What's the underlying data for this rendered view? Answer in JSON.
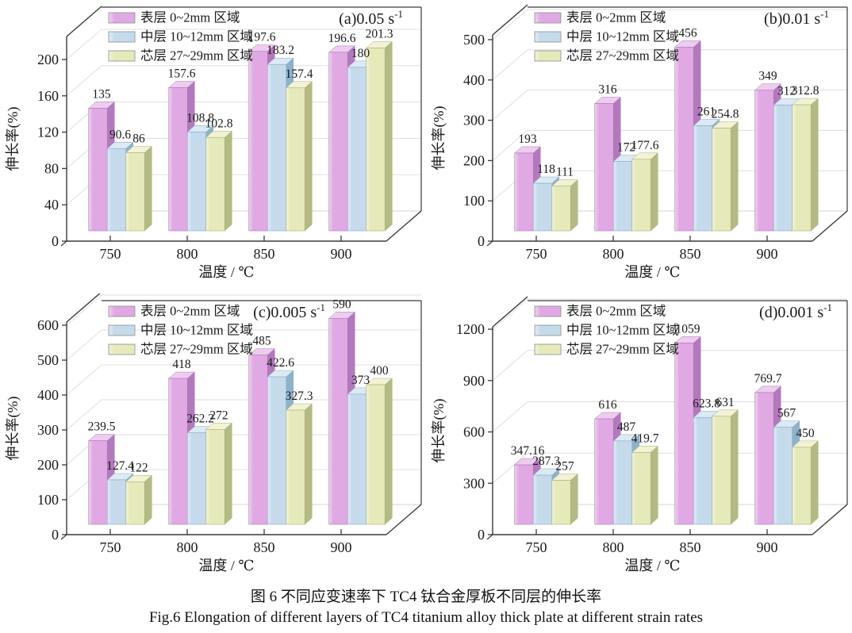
{
  "figure": {
    "caption_line1": "图 6  不同应变速率下 TC4 钛合金厚板不同层的伸长率",
    "caption_line2": "Fig.6  Elongation of different layers of TC4 titanium alloy thick plate at different strain rates"
  },
  "colors": {
    "axis": "#3a3a3a",
    "grid": "#dfdfdf",
    "text": "#1a1a1a",
    "series": [
      {
        "name": "表层 0~2mm 区域",
        "front": "#e0a9e3",
        "side": "#b27abc",
        "top": "#eeccf0",
        "edge": "#a878b0",
        "highlight": "#f0d4f2"
      },
      {
        "name": "中层 10~12mm 区域",
        "front": "#c5dbec",
        "side": "#8fb2ca",
        "top": "#dceaf5",
        "edge": "#85a9c2",
        "highlight": "#e2eef7"
      },
      {
        "name": "芯层 27~29mm 区域",
        "front": "#e6e9ba",
        "side": "#b4ba83",
        "top": "#f1f3d4",
        "edge": "#a9ae77",
        "highlight": "#f2f4d8"
      }
    ]
  },
  "chart_data": [
    {
      "type": "bar",
      "panel": "a",
      "title_main": "(a)0.05 s",
      "title_sup": "-1",
      "strain_rate": "0.05 s⁻¹",
      "xlabel": "温度 / ℃",
      "ylabel": "伸长率(%)",
      "categories": [
        750,
        800,
        850,
        900
      ],
      "yticks": [
        0,
        40,
        80,
        120,
        160,
        200
      ],
      "ylim": [
        0,
        225
      ],
      "legend_position": "top-left",
      "series": [
        {
          "name": "表层 0~2mm 区域",
          "values": [
            135,
            157.6,
            197.6,
            196.6
          ]
        },
        {
          "name": "中层 10~12mm 区域",
          "values": [
            90.6,
            108.8,
            183.2,
            180
          ]
        },
        {
          "name": "芯层 27~29mm 区域",
          "values": [
            86,
            102.8,
            157.4,
            201.3
          ]
        }
      ]
    },
    {
      "type": "bar",
      "panel": "b",
      "title_main": "(b)0.01 s",
      "title_sup": "-1",
      "strain_rate": "0.01 s⁻¹",
      "xlabel": "温度 / ℃",
      "ylabel": "伸长率(%)",
      "categories": [
        750,
        800,
        850,
        900
      ],
      "yticks": [
        0,
        100,
        200,
        300,
        400,
        500
      ],
      "ylim": [
        0,
        560
      ],
      "legend_position": "top-left",
      "series": [
        {
          "name": "表层 0~2mm 区域",
          "values": [
            193,
            316,
            456,
            349
          ]
        },
        {
          "name": "中层 10~12mm 区域",
          "values": [
            118,
            172,
            261,
            312
          ]
        },
        {
          "name": "芯层 27~29mm 区域",
          "values": [
            111,
            177.6,
            254.8,
            312.8
          ]
        }
      ]
    },
    {
      "type": "bar",
      "panel": "c",
      "title_main": "(c)0.005 s",
      "title_sup": "-1",
      "strain_rate": "0.005 s⁻¹",
      "xlabel": "温度 / ℃",
      "ylabel": "伸长率(%)",
      "categories": [
        750,
        800,
        850,
        900
      ],
      "yticks": [
        0,
        100,
        200,
        300,
        400,
        500,
        600
      ],
      "ylim": [
        0,
        660
      ],
      "legend_position": "top-left",
      "series": [
        {
          "name": "表层 0~2mm 区域",
          "values": [
            239.5,
            418,
            485,
            590
          ]
        },
        {
          "name": "中层 10~12mm 区域",
          "values": [
            127.4,
            262.2,
            422.6,
            373
          ]
        },
        {
          "name": "芯层 27~29mm 区域",
          "values": [
            122,
            272,
            327.3,
            400
          ]
        }
      ]
    },
    {
      "type": "bar",
      "panel": "d",
      "title_main": "(d)0.001 s",
      "title_sup": "-1",
      "strain_rate": "0.001 s⁻¹",
      "xlabel": "温度 / ℃",
      "ylabel": "伸长率(%)",
      "categories": [
        750,
        800,
        850,
        900
      ],
      "yticks": [
        0,
        300,
        600,
        900,
        1200
      ],
      "ylim": [
        0,
        1300
      ],
      "legend_position": "top-left",
      "series": [
        {
          "name": "表层 0~2mm 区域",
          "values": [
            347.16,
            616,
            1059,
            769.7
          ]
        },
        {
          "name": "中层 10~12mm 区域",
          "values": [
            287.3,
            487,
            623.8,
            567
          ]
        },
        {
          "name": "芯层 27~29mm 区域",
          "values": [
            257,
            419.7,
            631,
            450
          ]
        }
      ]
    }
  ]
}
